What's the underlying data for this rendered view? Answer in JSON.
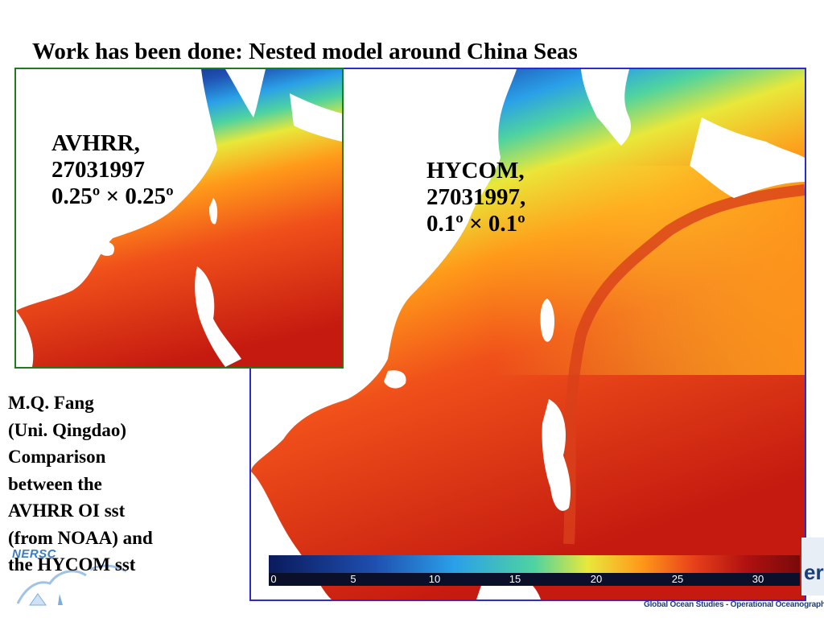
{
  "slide": {
    "title": "Work has been done: Nested model around China Seas"
  },
  "panels": {
    "hycom": {
      "label_lines": [
        "HYCOM,",
        "27031997,",
        "0.1º × 0.1º"
      ],
      "border_color": "#2b2bd0"
    },
    "avhrr": {
      "label_lines": [
        "AVHRR,",
        "27031997",
        "0.25º × 0.25º"
      ],
      "border_color": "#1f7a1f"
    }
  },
  "colorbar": {
    "ticks": [
      "0",
      "5",
      "10",
      "15",
      "20",
      "25",
      "30"
    ],
    "range": [
      0,
      32
    ],
    "colors": [
      "#0a1a5c",
      "#1f4fb0",
      "#2aa0e8",
      "#4fd3a0",
      "#e8e83a",
      "#ff9a1a",
      "#e8401a",
      "#b01010",
      "#7a0a0a"
    ]
  },
  "caption": {
    "lines": [
      "M.Q. Fang",
      "(Uni. Qingdao)",
      "Comparison",
      "between the",
      "AVHRR OI sst",
      "(from NOAA) and",
      "the HYCOM sst"
    ]
  },
  "logos": {
    "nersc_text": "NERSC",
    "footer_text": "Global Ocean Studies - Operational Oceanography",
    "brand_partial": "er"
  }
}
